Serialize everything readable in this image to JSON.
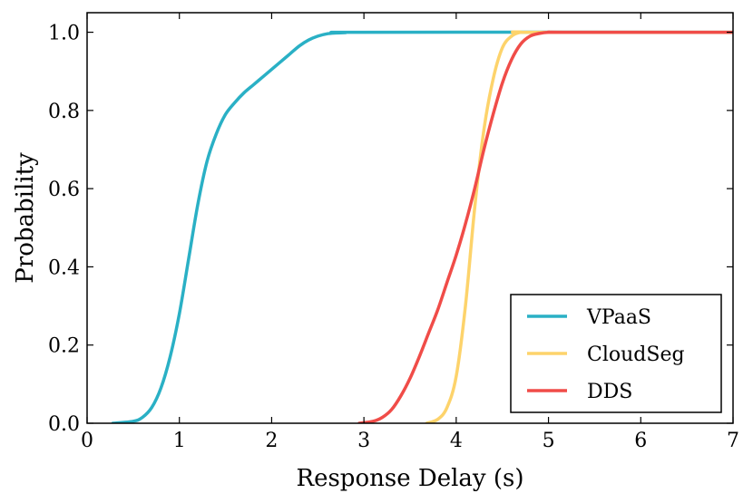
{
  "chart_data": {
    "type": "line",
    "title": "",
    "xlabel": "Response Delay (s)",
    "ylabel": "Probability",
    "xlim": [
      0,
      7
    ],
    "ylim": [
      0,
      1.05
    ],
    "xticks": [
      0,
      1,
      2,
      3,
      4,
      5,
      6,
      7
    ],
    "yticks": [
      0.0,
      0.2,
      0.4,
      0.6,
      0.8,
      1.0
    ],
    "xtick_labels": [
      "0",
      "1",
      "2",
      "3",
      "4",
      "5",
      "6",
      "7"
    ],
    "ytick_labels": [
      "0.0",
      "0.2",
      "0.4",
      "0.6",
      "0.8",
      "1.0"
    ],
    "grid": false,
    "legend_position": "bottom-right",
    "series": [
      {
        "name": "VPaaS",
        "color": "#2ab0c5",
        "x": [
          0.28,
          0.5,
          0.6,
          0.7,
          0.8,
          0.9,
          1.0,
          1.1,
          1.2,
          1.3,
          1.4,
          1.5,
          1.6,
          1.7,
          1.8,
          1.9,
          2.0,
          2.1,
          2.2,
          2.3,
          2.4,
          2.5,
          2.6,
          2.7,
          2.8,
          3.0,
          7.0
        ],
        "y": [
          0.0,
          0.005,
          0.015,
          0.04,
          0.09,
          0.17,
          0.28,
          0.42,
          0.56,
          0.67,
          0.74,
          0.79,
          0.82,
          0.845,
          0.865,
          0.885,
          0.905,
          0.925,
          0.945,
          0.965,
          0.98,
          0.99,
          0.996,
          0.998,
          0.999,
          1.0,
          1.0
        ]
      },
      {
        "name": "CloudSeg",
        "color": "#fdd36b",
        "x": [
          3.68,
          3.8,
          3.9,
          4.0,
          4.1,
          4.2,
          4.3,
          4.4,
          4.5,
          4.6,
          4.7,
          4.8,
          7.0
        ],
        "y": [
          0.0,
          0.01,
          0.04,
          0.12,
          0.3,
          0.55,
          0.75,
          0.88,
          0.96,
          0.99,
          1.0,
          1.0,
          1.0
        ]
      },
      {
        "name": "DDS",
        "color": "#f04c48",
        "x": [
          2.95,
          3.1,
          3.2,
          3.3,
          3.4,
          3.5,
          3.6,
          3.7,
          3.8,
          3.9,
          4.0,
          4.1,
          4.2,
          4.3,
          4.4,
          4.5,
          4.6,
          4.7,
          4.8,
          4.9,
          5.0,
          5.2,
          7.0
        ],
        "y": [
          0.0,
          0.005,
          0.015,
          0.035,
          0.07,
          0.115,
          0.17,
          0.23,
          0.29,
          0.36,
          0.43,
          0.51,
          0.6,
          0.7,
          0.79,
          0.87,
          0.93,
          0.97,
          0.99,
          0.997,
          1.0,
          1.0,
          1.0
        ]
      }
    ]
  }
}
